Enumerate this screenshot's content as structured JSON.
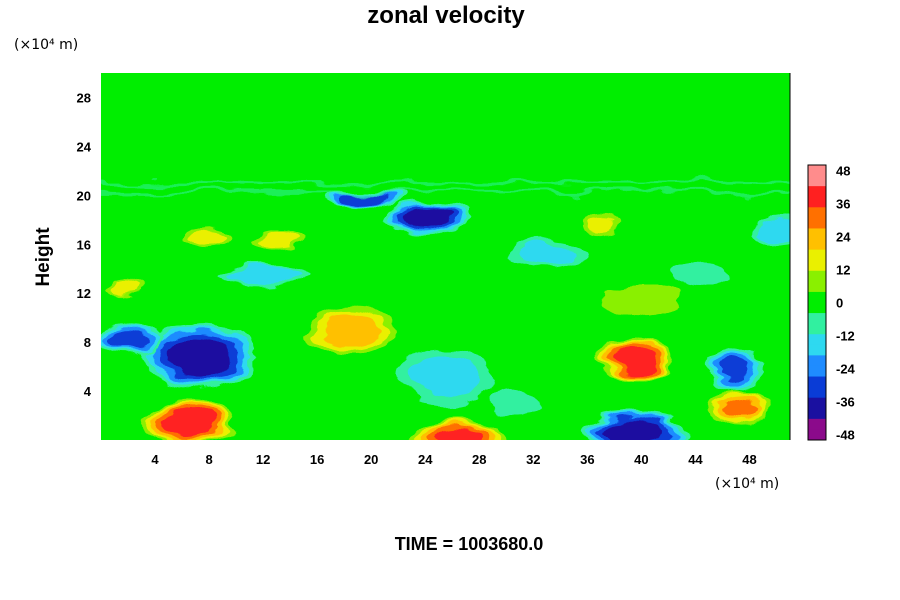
{
  "chart_data": {
    "type": "heatmap",
    "title": "zonal velocity",
    "ylabel": "Height",
    "y_unit": "(×10⁴ m)",
    "x_unit": "(×10⁴ m)",
    "footer": "TIME = 1003680.0",
    "xlim": [
      0,
      51
    ],
    "ylim": [
      0,
      30
    ],
    "x_ticks": [
      "4",
      "8",
      "12",
      "16",
      "20",
      "24",
      "28",
      "32",
      "36",
      "40",
      "44",
      "48"
    ],
    "y_ticks": [
      "4",
      "8",
      "12",
      "16",
      "20",
      "24",
      "28"
    ],
    "colorbar": {
      "range": [
        -50,
        50
      ],
      "ticks": [
        "48",
        "36",
        "24",
        "12",
        "0",
        "-12",
        "-24",
        "-36",
        "-48"
      ],
      "palette": [
        "#8b0a8b",
        "#1a10a0",
        "#0a3cd6",
        "#1f8cff",
        "#2ed9f0",
        "#31f0a0",
        "#00ee00",
        "#8af000",
        "#eaf000",
        "#ffc000",
        "#ff7000",
        "#ff2020",
        "#ff8c8c"
      ]
    },
    "features": [
      {
        "x": 6.5,
        "y": 1.4,
        "value": 44,
        "rx": 3.6,
        "ry": 1.8
      },
      {
        "x": 26.5,
        "y": 0.2,
        "value": 40,
        "rx": 3.6,
        "ry": 1.6
      },
      {
        "x": 39.5,
        "y": 6.6,
        "value": 44,
        "rx": 2.8,
        "ry": 1.9
      },
      {
        "x": 47.3,
        "y": 2.6,
        "value": 34,
        "rx": 2.4,
        "ry": 1.5
      },
      {
        "x": 18.5,
        "y": 9.0,
        "value": 26,
        "rx": 3.6,
        "ry": 2.3
      },
      {
        "x": 8.0,
        "y": 16.5,
        "value": 20,
        "rx": 1.8,
        "ry": 1.2
      },
      {
        "x": 13.2,
        "y": 16.4,
        "value": 18,
        "rx": 2.3,
        "ry": 0.9
      },
      {
        "x": 37.0,
        "y": 17.6,
        "value": 16,
        "rx": 1.6,
        "ry": 1.0
      },
      {
        "x": 40.0,
        "y": 11.5,
        "value": 12,
        "rx": 3.2,
        "ry": 1.4
      },
      {
        "x": 1.8,
        "y": 12.4,
        "value": 18,
        "rx": 1.4,
        "ry": 0.7
      },
      {
        "x": 7.2,
        "y": 6.8,
        "value": -44,
        "rx": 4.4,
        "ry": 2.7
      },
      {
        "x": 2.0,
        "y": 8.2,
        "value": -36,
        "rx": 2.6,
        "ry": 1.3
      },
      {
        "x": 24.0,
        "y": 18.2,
        "value": -46,
        "rx": 3.2,
        "ry": 1.5
      },
      {
        "x": 19.5,
        "y": 19.8,
        "value": -34,
        "rx": 3.2,
        "ry": 0.6
      },
      {
        "x": 39.5,
        "y": 0.6,
        "value": -46,
        "rx": 4.2,
        "ry": 1.7
      },
      {
        "x": 47.0,
        "y": 6.0,
        "value": -32,
        "rx": 2.4,
        "ry": 2.0
      },
      {
        "x": 25.5,
        "y": 5.2,
        "value": -18,
        "rx": 4.0,
        "ry": 2.6
      },
      {
        "x": 12.0,
        "y": 13.5,
        "value": -20,
        "rx": 3.5,
        "ry": 0.9
      },
      {
        "x": 33.0,
        "y": 15.0,
        "value": -16,
        "rx": 3.2,
        "ry": 1.4
      },
      {
        "x": 50.0,
        "y": 17.0,
        "value": -22,
        "rx": 1.8,
        "ry": 1.4
      },
      {
        "x": 30.5,
        "y": 3.0,
        "value": -14,
        "rx": 2.0,
        "ry": 1.5
      },
      {
        "x": 44.5,
        "y": 13.5,
        "value": -12,
        "rx": 2.5,
        "ry": 1.3
      }
    ]
  }
}
